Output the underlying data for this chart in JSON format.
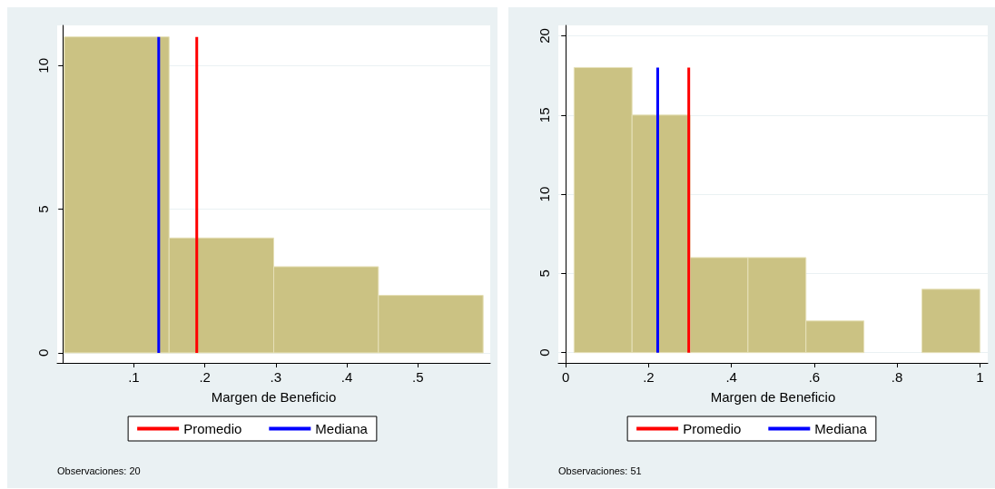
{
  "chart_data": [
    {
      "type": "histogram",
      "xlabel": "Margen de Beneficio",
      "bins": [
        0.002,
        0.1496,
        0.297,
        0.4445,
        0.592
      ],
      "values": [
        11,
        4,
        3,
        2
      ],
      "color": "#cbc283",
      "xlim": [
        -0.008,
        0.602
      ],
      "xticks": [
        {
          "value": 0.1,
          "label": ".1"
        },
        {
          "value": 0.2,
          "label": ".2"
        },
        {
          "value": 0.3,
          "label": ".3"
        },
        {
          "value": 0.4,
          "label": ".4"
        },
        {
          "value": 0.5,
          "label": ".5"
        }
      ],
      "ylim": [
        -0.35,
        11.4
      ],
      "yticks": [
        0,
        5,
        10
      ],
      "grid": "y",
      "legend": "bottom",
      "ref_lines": [
        {
          "axis": "x",
          "value": 0.1886,
          "label": "Promedio",
          "color": "#ff0000"
        },
        {
          "axis": "x",
          "value": 0.135,
          "label": "Mediana",
          "color": "#0000ff"
        }
      ],
      "annotations": [
        "Observaciones: 20"
      ]
    },
    {
      "type": "histogram",
      "xlabel": "Margen de Beneficio",
      "bins": [
        0.02,
        0.16,
        0.3,
        0.44,
        0.58,
        0.72,
        0.86,
        1.0
      ],
      "values": [
        18,
        15,
        6,
        6,
        2,
        0,
        4
      ],
      "color": "#cbc283",
      "xlim": [
        -0.018,
        1.019
      ],
      "xticks": [
        0,
        {
          "value": 0.2,
          "label": ".2"
        },
        {
          "value": 0.4,
          "label": ".4"
        },
        {
          "value": 0.6,
          "label": ".6"
        },
        {
          "value": 0.8,
          "label": ".8"
        },
        1
      ],
      "ylim": [
        -0.65,
        20.66
      ],
      "yticks": [
        0,
        5,
        10,
        15,
        20
      ],
      "grid": "y",
      "legend": "bottom",
      "ref_lines": [
        {
          "axis": "x",
          "value": 0.297,
          "label": "Promedio",
          "color": "#ff0000"
        },
        {
          "axis": "x",
          "value": 0.222,
          "label": "Mediana",
          "color": "#0000ff"
        }
      ],
      "annotations": [
        "Observaciones: 51"
      ]
    }
  ]
}
